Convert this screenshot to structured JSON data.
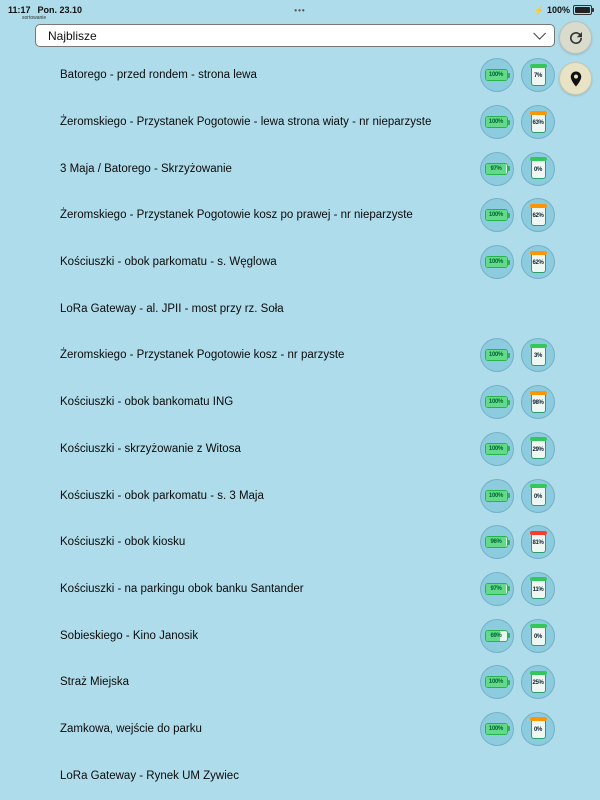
{
  "status_bar": {
    "time": "11:17",
    "date": "Pon. 23.10",
    "center_dots": "•••",
    "battery_bolt": "⚡",
    "battery_percent": "100%"
  },
  "toolbar": {
    "sort_caption": "sortowanie",
    "dropdown_value": "Najblisze"
  },
  "colors": {
    "background": "#aedcea",
    "badge_circle": "#8dcbdf",
    "battery_green": "#28b44c",
    "bin_green": "#34c759",
    "bin_orange": "#ff9500",
    "bin_red": "#ff3b30",
    "refresh_button_bg": "#d9dbcc",
    "locate_button_bg": "#e7e3c4"
  },
  "icons": {
    "refresh": "refresh-icon",
    "locate": "location-pin-icon",
    "dropdown": "chevron-down-icon",
    "status_battery": "battery-icon"
  },
  "list": {
    "items": [
      {
        "label": "Batorego - przed rondem - strona lewa",
        "battery": "100%",
        "bin": "7%",
        "bin_color": "#34c759"
      },
      {
        "label": "Żeromskiego - Przystanek Pogotowie - lewa strona wiaty - nr nieparzyste",
        "battery": "100%",
        "bin": "63%",
        "bin_color": "#ff9500"
      },
      {
        "label": "3 Maja /  Batorego - Skrzyżowanie",
        "battery": "97%",
        "bin": "0%",
        "bin_color": "#34c759"
      },
      {
        "label": "Żeromskiego - Przystanek Pogotowie kosz po prawej - nr nieparzyste",
        "battery": "100%",
        "bin": "62%",
        "bin_color": "#ff9500"
      },
      {
        "label": "Kościuszki - obok parkomatu - s. Węglowa",
        "battery": "100%",
        "bin": "62%",
        "bin_color": "#ff9500"
      },
      {
        "label": "LoRa Gateway - al. JPII - most przy rz. Soła",
        "battery": null,
        "bin": null,
        "bin_color": null
      },
      {
        "label": "Żeromskiego - Przystanek Pogotowie kosz - nr parzyste",
        "battery": "100%",
        "bin": "3%",
        "bin_color": "#34c759"
      },
      {
        "label": "Kościuszki - obok bankomatu ING",
        "battery": "100%",
        "bin": "98%",
        "bin_color": "#ff9500"
      },
      {
        "label": "Kościuszki - skrzyżowanie z Witosa",
        "battery": "100%",
        "bin": "29%",
        "bin_color": "#34c759"
      },
      {
        "label": "Kościuszki - obok parkomatu - s. 3 Maja",
        "battery": "100%",
        "bin": "0%",
        "bin_color": "#34c759"
      },
      {
        "label": "Kościuszki - obok kiosku",
        "battery": "96%",
        "bin": "81%",
        "bin_color": "#ff3b30"
      },
      {
        "label": "Kościuszki - na parkingu obok banku Santander",
        "battery": "97%",
        "bin": "11%",
        "bin_color": "#34c759"
      },
      {
        "label": "Sobieskiego - Kino Janosik",
        "battery": "69%",
        "bin": "0%",
        "bin_color": "#34c759"
      },
      {
        "label": "Straż Miejska",
        "battery": "100%",
        "bin": "25%",
        "bin_color": "#34c759"
      },
      {
        "label": "Zamkowa, wejście do parku",
        "battery": "100%",
        "bin": "0%",
        "bin_color": "#ff9500"
      },
      {
        "label": "LoRa Gateway - Rynek UM Zywiec",
        "battery": null,
        "bin": null,
        "bin_color": null
      }
    ]
  }
}
